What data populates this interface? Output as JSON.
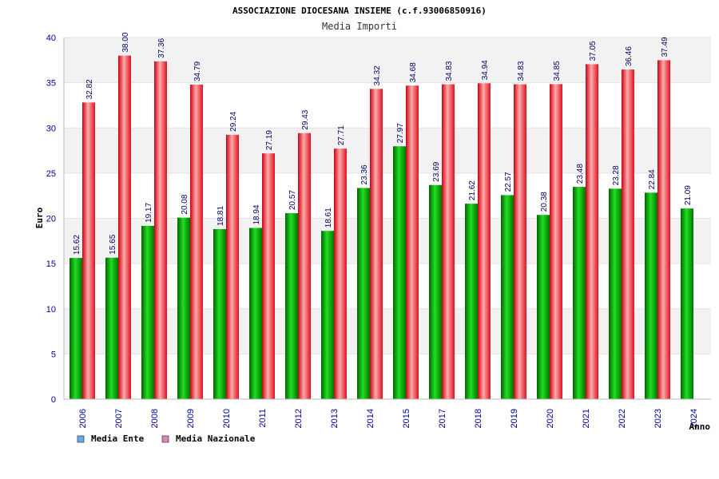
{
  "chart_data": {
    "type": "bar",
    "title": "ASSOCIAZIONE DIOCESANA INSIEME (c.f.93006850916)",
    "subtitle": "Media Importi",
    "xlabel": "Anno",
    "ylabel": "Euro",
    "ylim": [
      0,
      40
    ],
    "yticks": [
      "0",
      "5",
      "10",
      "15",
      "20",
      "25",
      "30",
      "35",
      "40"
    ],
    "grid": true,
    "legend_position": "bottom-left",
    "categories": [
      "2006",
      "2007",
      "2008",
      "2009",
      "2010",
      "2011",
      "2012",
      "2013",
      "2014",
      "2015",
      "2017",
      "2018",
      "2019",
      "2020",
      "2021",
      "2022",
      "2023",
      "2024"
    ],
    "series": [
      {
        "name": "Media Ente",
        "legend_color": "#66aaee",
        "bar_color": "#00aa00",
        "values": [
          15.62,
          15.65,
          19.17,
          20.08,
          18.81,
          18.94,
          20.57,
          18.61,
          23.36,
          27.97,
          23.69,
          21.62,
          22.57,
          20.38,
          23.48,
          23.28,
          22.84,
          21.09
        ],
        "labels": [
          "15.62",
          "15.65",
          "19.17",
          "20.08",
          "18.81",
          "18.94",
          "20.57",
          "18.61",
          "23.36",
          "27.97",
          "23.69",
          "21.62",
          "22.57",
          "20.38",
          "23.48",
          "23.28",
          "22.84",
          "21.09"
        ]
      },
      {
        "name": "Media Nazionale",
        "legend_color": "#dd88bb",
        "bar_color": "#ee2233",
        "values": [
          32.82,
          38.0,
          37.36,
          34.79,
          29.24,
          27.19,
          29.43,
          27.71,
          34.32,
          34.68,
          34.83,
          34.94,
          34.83,
          34.85,
          37.05,
          36.46,
          37.49,
          null
        ],
        "labels": [
          "32.82",
          "38.00",
          "37.36",
          "34.79",
          "29.24",
          "27.19",
          "29.43",
          "27.71",
          "34.32",
          "34.68",
          "34.83",
          "34.94",
          "34.83",
          "34.85",
          "37.05",
          "36.46",
          "37.49",
          null
        ]
      }
    ]
  }
}
